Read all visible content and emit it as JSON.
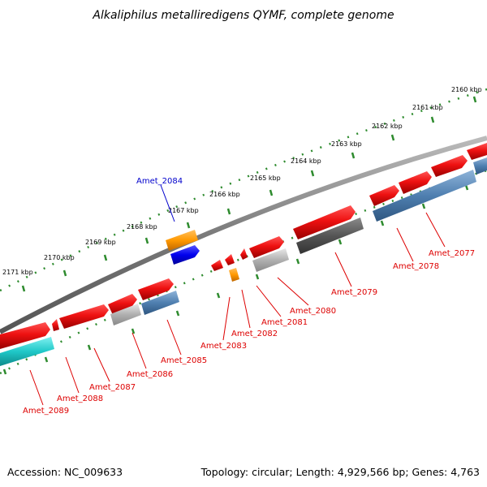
{
  "title": "Alkaliphilus metalliredigens QYMF, complete genome",
  "footer": {
    "accession": "Accession: NC_009633",
    "info": "Topology: circular; Length: 4,929,566 bp; Genes: 4,763"
  },
  "ruler_labels": [
    "2160 kbp",
    "2161 kbp",
    "2162 kbp",
    "2163 kbp",
    "2164 kbp",
    "2165 kbp",
    "2166 kbp",
    "2167 kbp",
    "2168 kbp",
    "2169 kbp",
    "2170 kbp",
    "2171 kbp"
  ],
  "colors": {
    "backbone": "#808080",
    "ruler_ticks": "#2e8b2e",
    "gene_red": "#ee1111",
    "gene_blue": "#4f7fb0",
    "gene_gray": "#aaaaaa",
    "gene_darkgray": "#555555",
    "gene_cyan": "#1fc8c8",
    "gene_orange": "#ff9900",
    "gene_bright_blue": "#0000ee",
    "label_red": "#dd0000",
    "label_blue": "#0000cc"
  },
  "gene_labels": [
    {
      "name": "Amet_2077",
      "color": "red"
    },
    {
      "name": "Amet_2078",
      "color": "red"
    },
    {
      "name": "Amet_2079",
      "color": "red"
    },
    {
      "name": "Amet_2080",
      "color": "red"
    },
    {
      "name": "Amet_2081",
      "color": "red"
    },
    {
      "name": "Amet_2082",
      "color": "red"
    },
    {
      "name": "Amet_2083",
      "color": "red"
    },
    {
      "name": "Amet_2084",
      "color": "blue"
    },
    {
      "name": "Amet_2085",
      "color": "red"
    },
    {
      "name": "Amet_2086",
      "color": "red"
    },
    {
      "name": "Amet_2087",
      "color": "red"
    },
    {
      "name": "Amet_2088",
      "color": "red"
    },
    {
      "name": "Amet_2089",
      "color": "red"
    }
  ]
}
